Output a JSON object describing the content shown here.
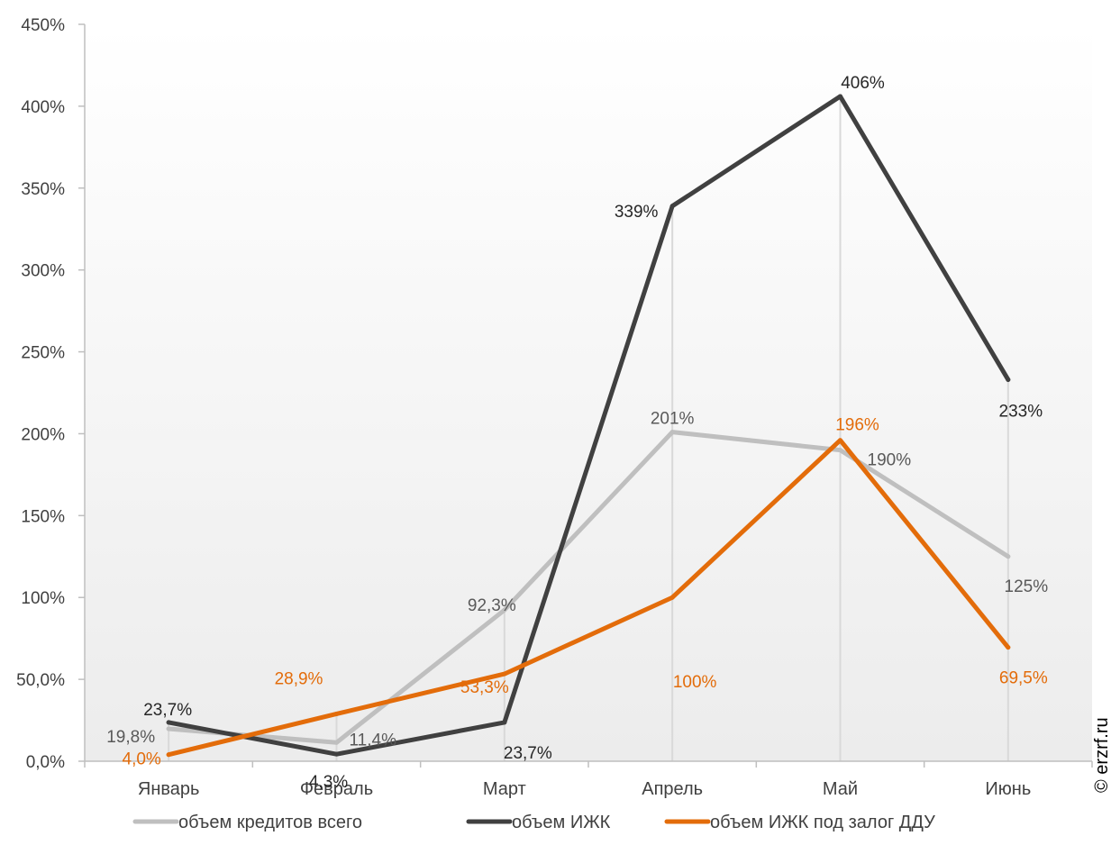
{
  "chart_data": {
    "type": "line",
    "categories": [
      "Январь",
      "Февраль",
      "Март",
      "Апрель",
      "Май",
      "Июнь"
    ],
    "ylim": [
      0,
      450
    ],
    "yticks": [
      {
        "value": 0,
        "label": "0,0%"
      },
      {
        "value": 50,
        "label": "50,0%"
      },
      {
        "value": 100,
        "label": "100%"
      },
      {
        "value": 150,
        "label": "150%"
      },
      {
        "value": 200,
        "label": "200%"
      },
      {
        "value": 250,
        "label": "250%"
      },
      {
        "value": 300,
        "label": "300%"
      },
      {
        "value": 350,
        "label": "350%"
      },
      {
        "value": 400,
        "label": "400%"
      },
      {
        "value": 450,
        "label": "450%"
      }
    ],
    "grid": false,
    "legend_position": "bottom",
    "series": [
      {
        "name": "объем кредитов всего",
        "color": "#bfbfbf",
        "values": [
          19.8,
          11.4,
          92.3,
          201,
          190,
          125
        ],
        "labels": [
          "19,8%",
          "11,4%",
          "92,3%",
          "201%",
          "190%",
          "125%"
        ]
      },
      {
        "name": "объем ИЖК",
        "color": "#404040",
        "values": [
          23.7,
          4.3,
          23.7,
          339,
          406,
          233
        ],
        "labels": [
          "23,7%",
          "4,3%",
          "23,7%",
          "339%",
          "406%",
          "233%"
        ]
      },
      {
        "name": "объем ИЖК под залог ДДУ",
        "color": "#e36c0a",
        "values": [
          4.0,
          28.9,
          53.3,
          100,
          196,
          69.5
        ],
        "labels": [
          "4,0%",
          "28,9%",
          "53,3%",
          "100%",
          "196%",
          "69,5%"
        ]
      }
    ]
  },
  "copyright": "© erzrf.ru"
}
